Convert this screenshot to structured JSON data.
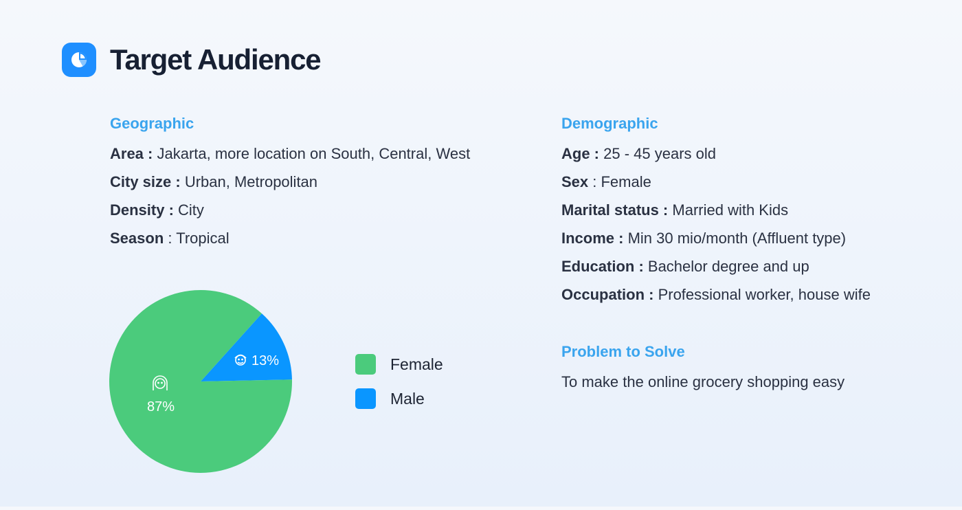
{
  "header": {
    "title": "Target Audience",
    "icon": "pie-chart-icon"
  },
  "geographic": {
    "title": "Geographic",
    "rows": [
      {
        "label": "Area :",
        "value": " Jakarta, more location on South, Central, West"
      },
      {
        "label": "City size :",
        "value": " Urban, Metropolitan"
      },
      {
        "label": "Density :",
        "value": " City"
      },
      {
        "label": "Season",
        "value": " : Tropical"
      }
    ]
  },
  "demographic": {
    "title": "Demographic",
    "rows": [
      {
        "label": "Age :",
        "value": " 25 - 45 years old"
      },
      {
        "label": "Sex",
        "value": " : Female"
      },
      {
        "label": "Marital status :",
        "value": " Married with Kids"
      },
      {
        "label": "Income :",
        "value": " Min 30 mio/month (Affluent type)"
      },
      {
        "label": "Education :",
        "value": " Bachelor degree and up"
      },
      {
        "label": "Occupation :",
        "value": " Professional worker, house wife"
      }
    ]
  },
  "problem": {
    "title": "Problem to Solve",
    "text": "To make the online grocery shopping easy"
  },
  "chart_data": {
    "type": "pie",
    "slices": [
      {
        "name": "Female",
        "value": 87,
        "label": "87%",
        "color": "#4bcb7c",
        "icon": "female-face-icon"
      },
      {
        "name": "Male",
        "value": 13,
        "label": "13%",
        "color": "#0a96ff",
        "icon": "male-face-icon"
      }
    ],
    "legend": "right"
  }
}
